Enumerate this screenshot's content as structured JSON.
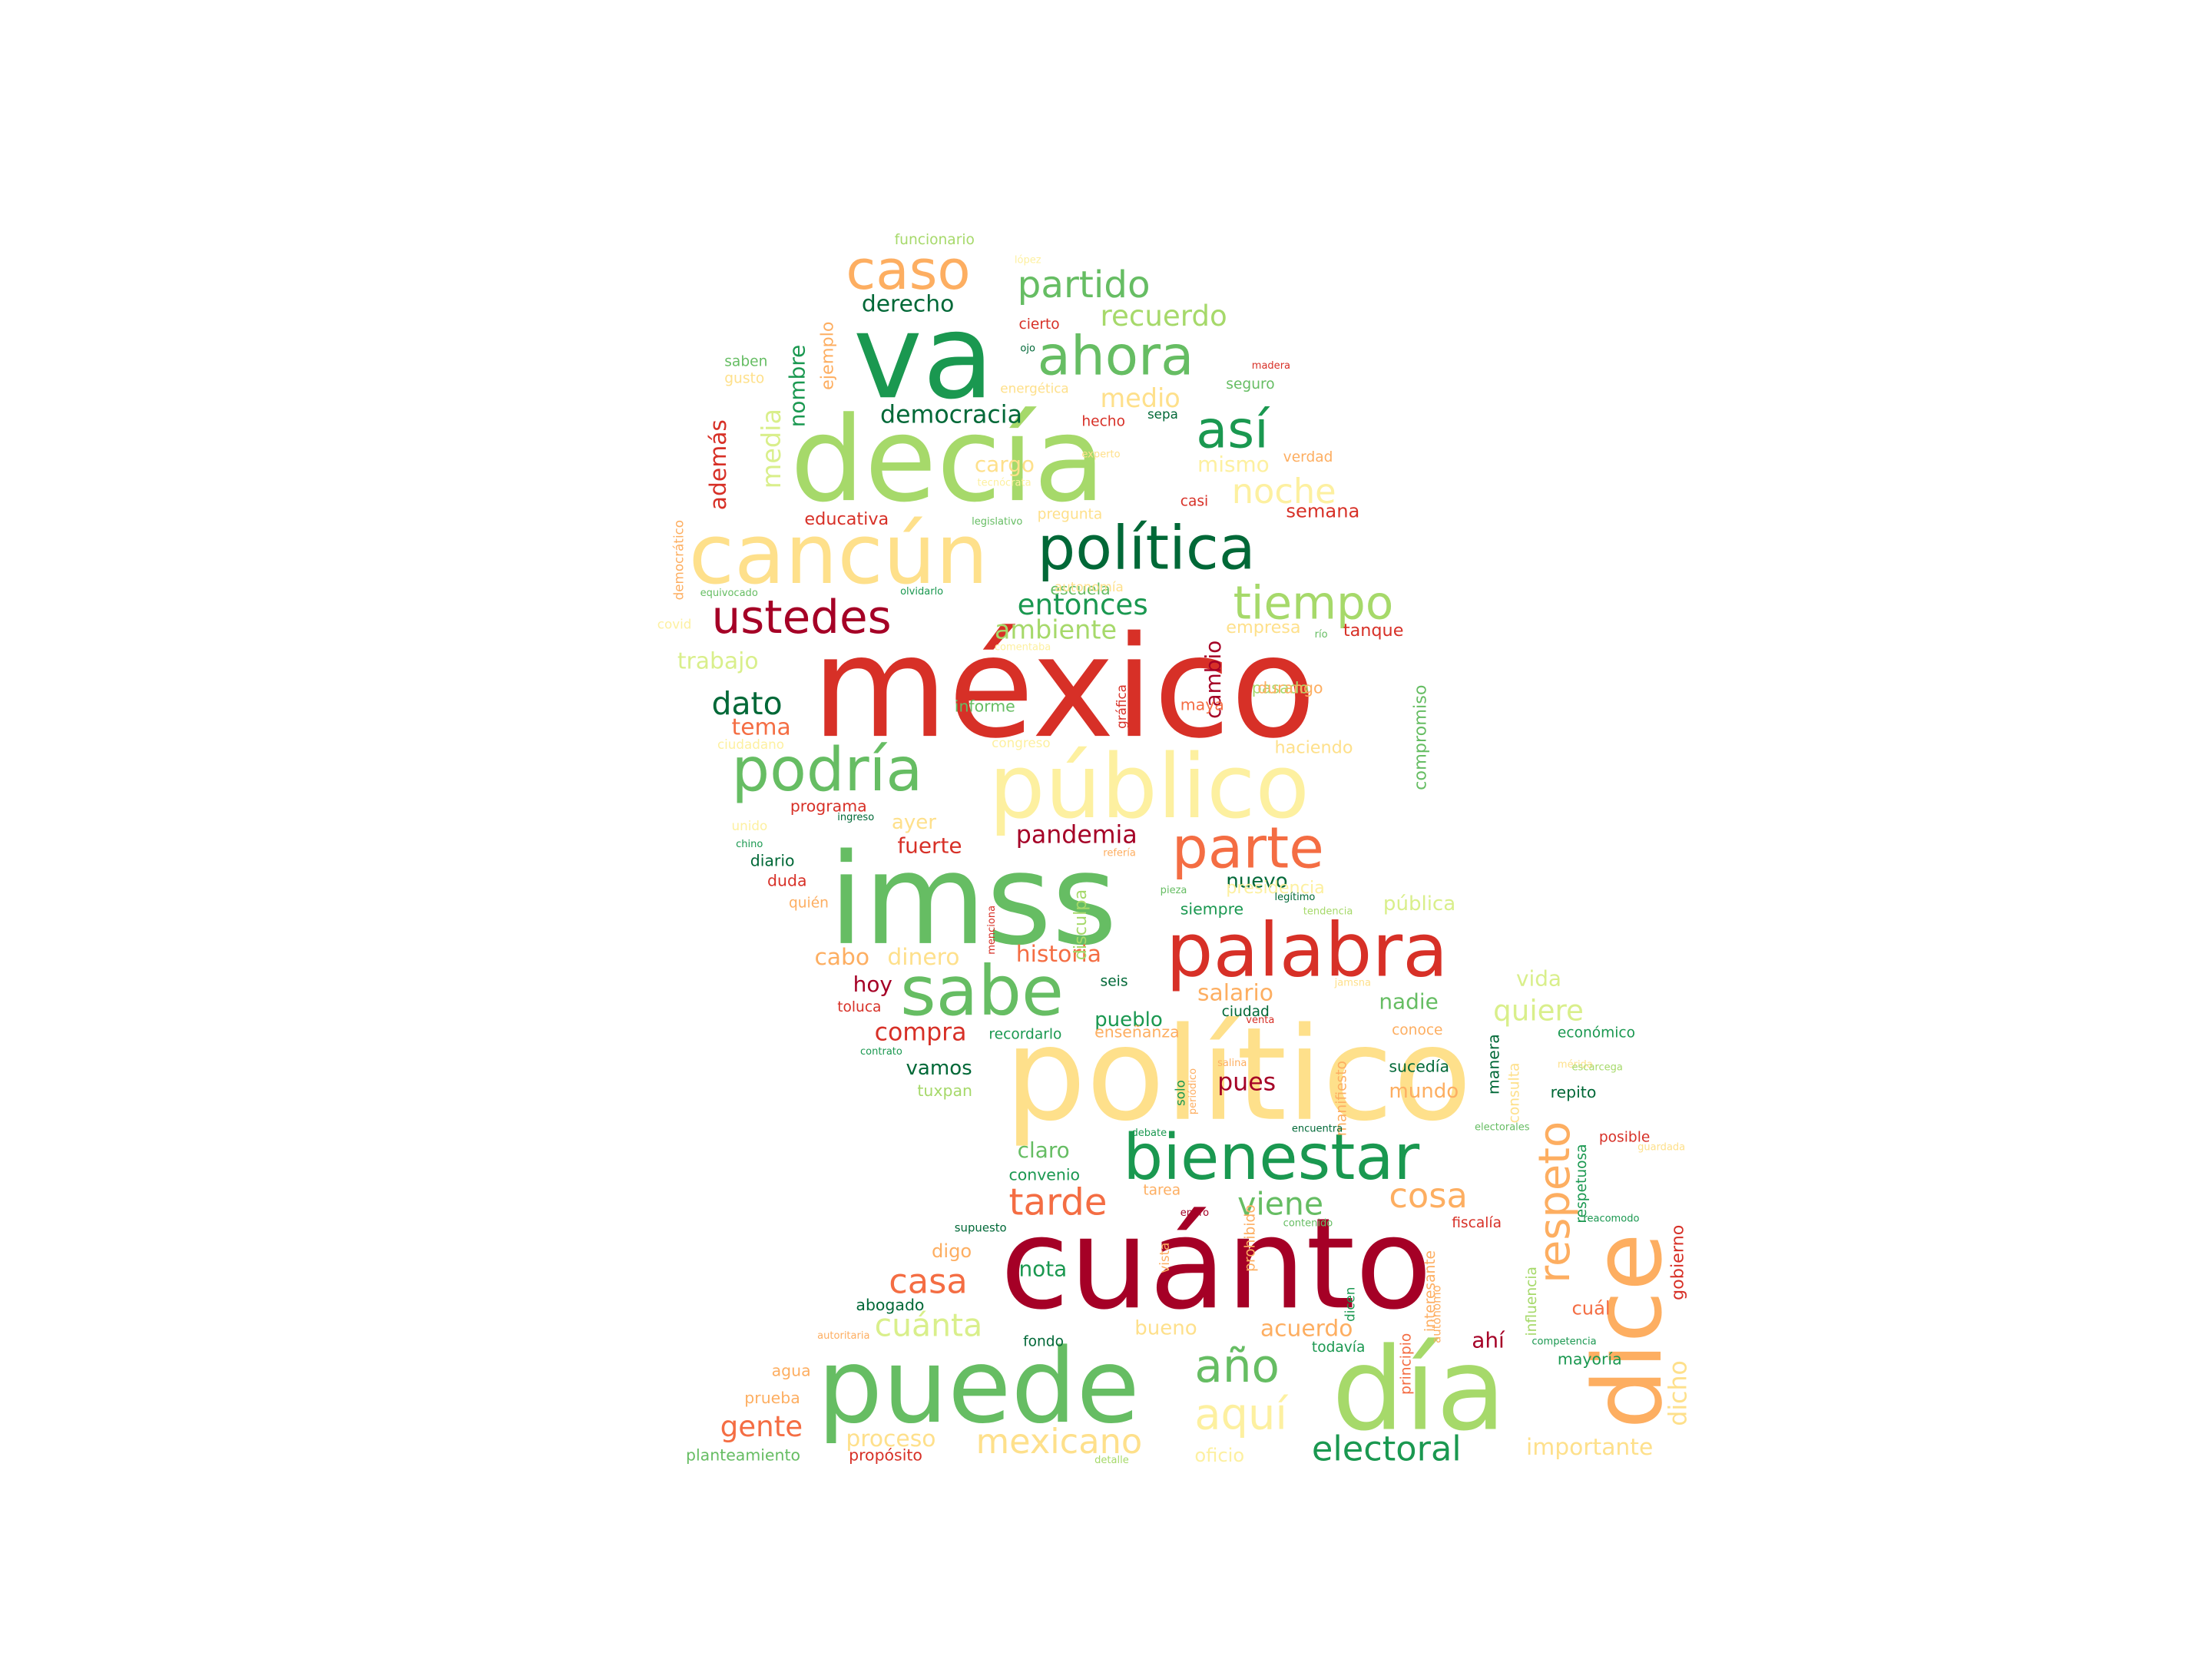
{
  "palette": {
    "dark_red": "#a50026",
    "red": "#d73027",
    "orange_red": "#f46d43",
    "orange": "#fdae61",
    "light_orange": "#fee08b",
    "pale_yellow": "#ffffbf",
    "pale_green": "#d9ef8b",
    "light_green": "#a6d96a",
    "green": "#66bd63",
    "dark_green": "#1a9850",
    "deep_green": "#006837",
    "yellow_text": "#fdf0a0"
  },
  "words": [
    {
      "text": "méxico",
      "color": "#d73027"
    },
    {
      "text": "político",
      "color": "#fee08b"
    },
    {
      "text": "cuánto",
      "color": "#a50026"
    },
    {
      "text": "imss",
      "color": "#66bd63"
    },
    {
      "text": "decía",
      "color": "#a6d96a"
    },
    {
      "text": "va",
      "color": "#1a9850"
    },
    {
      "text": "puede",
      "color": "#66bd63"
    },
    {
      "text": "día",
      "color": "#a6d96a"
    },
    {
      "text": "dice",
      "color": "#fdae61"
    },
    {
      "text": "público",
      "color": "#fdf0a0"
    },
    {
      "text": "cancún",
      "color": "#fee08b"
    },
    {
      "text": "palabra",
      "color": "#d73027"
    },
    {
      "text": "sabe",
      "color": "#66bd63"
    },
    {
      "text": "política",
      "color": "#006837"
    },
    {
      "text": "bienestar",
      "color": "#1a9850"
    },
    {
      "text": "podría",
      "color": "#66bd63"
    },
    {
      "text": "ahora",
      "color": "#66bd63"
    },
    {
      "text": "caso",
      "color": "#fdae61"
    },
    {
      "text": "parte",
      "color": "#f46d43"
    },
    {
      "text": "así",
      "color": "#1a9850"
    },
    {
      "text": "ustedes",
      "color": "#a50026"
    },
    {
      "text": "tiempo",
      "color": "#a6d96a"
    },
    {
      "text": "partido",
      "color": "#66bd63"
    },
    {
      "text": "noche",
      "color": "#fdf0a0"
    },
    {
      "text": "año",
      "color": "#66bd63"
    },
    {
      "text": "aquí",
      "color": "#fdf0a0"
    },
    {
      "text": "mexicano",
      "color": "#fee08b"
    },
    {
      "text": "electoral",
      "color": "#1a9850"
    },
    {
      "text": "tarde",
      "color": "#f46d43"
    },
    {
      "text": "casa",
      "color": "#f46d43"
    },
    {
      "text": "cuánta",
      "color": "#d9ef8b"
    },
    {
      "text": "cosa",
      "color": "#fdae61"
    },
    {
      "text": "viene",
      "color": "#66bd63"
    },
    {
      "text": "respeto",
      "color": "#fdae61"
    },
    {
      "text": "gente",
      "color": "#f46d43"
    },
    {
      "text": "dato",
      "color": "#006837"
    },
    {
      "text": "entonces",
      "color": "#1a9850"
    },
    {
      "text": "ambiente",
      "color": "#a6d96a"
    },
    {
      "text": "recuerdo",
      "color": "#a6d96a"
    },
    {
      "text": "democracia",
      "color": "#006837"
    },
    {
      "text": "derecho",
      "color": "#006837"
    },
    {
      "text": "medio",
      "color": "#fee08b"
    },
    {
      "text": "mismo",
      "color": "#fdf0a0"
    },
    {
      "text": "cargo",
      "color": "#fee08b"
    },
    {
      "text": "trabajo",
      "color": "#d9ef8b"
    },
    {
      "text": "tema",
      "color": "#f46d43"
    },
    {
      "text": "pandemia",
      "color": "#a50026"
    },
    {
      "text": "fuerte",
      "color": "#d73027"
    },
    {
      "text": "dinero",
      "color": "#fee08b"
    },
    {
      "text": "historia",
      "color": "#f46d43"
    },
    {
      "text": "cabo",
      "color": "#fdae61"
    },
    {
      "text": "hoy",
      "color": "#a50026"
    },
    {
      "text": "compra",
      "color": "#d73027"
    },
    {
      "text": "vamos",
      "color": "#006837"
    },
    {
      "text": "salario",
      "color": "#fdae61"
    },
    {
      "text": "pueblo",
      "color": "#1a9850"
    },
    {
      "text": "nadie",
      "color": "#66bd63"
    },
    {
      "text": "quiere",
      "color": "#d9ef8b"
    },
    {
      "text": "vida",
      "color": "#d9ef8b"
    },
    {
      "text": "pues",
      "color": "#a50026"
    },
    {
      "text": "mundo",
      "color": "#fdae61"
    },
    {
      "text": "claro",
      "color": "#66bd63"
    },
    {
      "text": "nota",
      "color": "#1a9850"
    },
    {
      "text": "digo",
      "color": "#fdae61"
    },
    {
      "text": "bueno",
      "color": "#fee08b"
    },
    {
      "text": "acuerdo",
      "color": "#fdae61"
    },
    {
      "text": "proceso",
      "color": "#fee08b"
    },
    {
      "text": "importante",
      "color": "#fee08b"
    },
    {
      "text": "oficio",
      "color": "#fdf0a0"
    },
    {
      "text": "cuál",
      "color": "#f46d43"
    },
    {
      "text": "ahí",
      "color": "#a50026"
    },
    {
      "text": "gobierno",
      "color": "#d73027"
    },
    {
      "text": "dicho",
      "color": "#fee08b"
    },
    {
      "text": "además",
      "color": "#d73027"
    },
    {
      "text": "media",
      "color": "#d9ef8b"
    },
    {
      "text": "nombre",
      "color": "#1a9850"
    },
    {
      "text": "ejemplo",
      "color": "#fdae61"
    },
    {
      "text": "cambio",
      "color": "#a50026"
    },
    {
      "text": "disculpa",
      "color": "#a6d96a"
    },
    {
      "text": "compromiso",
      "color": "#66bd63"
    },
    {
      "text": "semana",
      "color": "#d73027"
    },
    {
      "text": "educativa",
      "color": "#d73027"
    },
    {
      "text": "escuela",
      "color": "#66bd63"
    },
    {
      "text": "empresa",
      "color": "#fee08b"
    },
    {
      "text": "tanque",
      "color": "#d73027"
    },
    {
      "text": "informe",
      "color": "#66bd63"
    },
    {
      "text": "maya",
      "color": "#f46d43"
    },
    {
      "text": "pasado",
      "color": "#a6d96a"
    },
    {
      "text": "durango",
      "color": "#fdae61"
    },
    {
      "text": "haciendo",
      "color": "#fee08b"
    },
    {
      "text": "ayer",
      "color": "#fee08b"
    },
    {
      "text": "programa",
      "color": "#d73027"
    },
    {
      "text": "diario",
      "color": "#006837"
    },
    {
      "text": "duda",
      "color": "#d73027"
    },
    {
      "text": "quién",
      "color": "#fdae61"
    },
    {
      "text": "pública",
      "color": "#d9ef8b"
    },
    {
      "text": "nuevo",
      "color": "#006837"
    },
    {
      "text": "siempre",
      "color": "#1a9850"
    },
    {
      "text": "presidencia",
      "color": "#fdf0a0"
    },
    {
      "text": "seis",
      "color": "#006837"
    },
    {
      "text": "toluca",
      "color": "#d73027"
    },
    {
      "text": "ciudad",
      "color": "#006837"
    },
    {
      "text": "enseñanza",
      "color": "#fdae61"
    },
    {
      "text": "recordarlo",
      "color": "#1a9850"
    },
    {
      "text": "tuxpan",
      "color": "#a6d96a"
    },
    {
      "text": "convenio",
      "color": "#1a9850"
    },
    {
      "text": "abogado",
      "color": "#006837"
    },
    {
      "text": "fondo",
      "color": "#006837"
    },
    {
      "text": "todavía",
      "color": "#1a9850"
    },
    {
      "text": "agua",
      "color": "#fdae61"
    },
    {
      "text": "prueba",
      "color": "#fdae61"
    },
    {
      "text": "planteamiento",
      "color": "#66bd63"
    },
    {
      "text": "propósito",
      "color": "#d73027"
    },
    {
      "text": "sucedía",
      "color": "#006837"
    },
    {
      "text": "manera",
      "color": "#006837"
    },
    {
      "text": "repito",
      "color": "#006837"
    },
    {
      "text": "económico",
      "color": "#1a9850"
    },
    {
      "text": "conoce",
      "color": "#fdae61"
    },
    {
      "text": "fiscalía",
      "color": "#d73027"
    },
    {
      "text": "mayoría",
      "color": "#1a9850"
    },
    {
      "text": "posible",
      "color": "#d73027"
    },
    {
      "text": "funcionario",
      "color": "#a6d96a"
    },
    {
      "text": "saben",
      "color": "#66bd63"
    },
    {
      "text": "gusto",
      "color": "#fee08b"
    },
    {
      "text": "cierto",
      "color": "#d73027"
    },
    {
      "text": "hecho",
      "color": "#d73027"
    },
    {
      "text": "sepa",
      "color": "#006837"
    },
    {
      "text": "seguro",
      "color": "#66bd63"
    },
    {
      "text": "verdad",
      "color": "#fdae61"
    },
    {
      "text": "casi",
      "color": "#d73027"
    },
    {
      "text": "pregunta",
      "color": "#fee08b"
    },
    {
      "text": "energética",
      "color": "#fee08b"
    },
    {
      "text": "democrático",
      "color": "#fdae61"
    },
    {
      "text": "equivocado",
      "color": "#66bd63"
    },
    {
      "text": "covid",
      "color": "#fdf0a0"
    },
    {
      "text": "ciudadano",
      "color": "#fdf0a0"
    },
    {
      "text": "unido",
      "color": "#fdf0a0"
    },
    {
      "text": "gráfica",
      "color": "#d73027"
    },
    {
      "text": "congreso",
      "color": "#fdf0a0"
    },
    {
      "text": "influencia",
      "color": "#a6d96a"
    },
    {
      "text": "respetuosa",
      "color": "#1a9850"
    },
    {
      "text": "interesante",
      "color": "#fdae61"
    },
    {
      "text": "principio",
      "color": "#f46d43"
    },
    {
      "text": "prohibido",
      "color": "#fdae61"
    },
    {
      "text": "dicen",
      "color": "#1a9850"
    },
    {
      "text": "vista",
      "color": "#fdae61"
    },
    {
      "text": "solo",
      "color": "#1a9850"
    },
    {
      "text": "manifiesto",
      "color": "#fdae61"
    },
    {
      "text": "consulta",
      "color": "#fee08b"
    },
    {
      "text": "autónomo",
      "color": "#fdae61"
    },
    {
      "text": "tarea",
      "color": "#fdae61"
    },
    {
      "text": "lópez",
      "color": "#fdf0a0"
    },
    {
      "text": "ojo",
      "color": "#006837"
    },
    {
      "text": "madera",
      "color": "#d73027"
    },
    {
      "text": "experto",
      "color": "#fee08b"
    },
    {
      "text": "tecnócrata",
      "color": "#fdf0a0"
    },
    {
      "text": "legislativo",
      "color": "#66bd63"
    },
    {
      "text": "olvidarlo",
      "color": "#1a9850"
    },
    {
      "text": "autonomía",
      "color": "#fee08b"
    },
    {
      "text": "comentaba",
      "color": "#fdf0a0"
    },
    {
      "text": "río",
      "color": "#66bd63"
    },
    {
      "text": "ingreso",
      "color": "#006837"
    },
    {
      "text": "chino",
      "color": "#1a9850"
    },
    {
      "text": "refería",
      "color": "#fdae61"
    },
    {
      "text": "legítimo",
      "color": "#006837"
    },
    {
      "text": "pieza",
      "color": "#66bd63"
    },
    {
      "text": "tendencia",
      "color": "#a6d96a"
    },
    {
      "text": "menciona",
      "color": "#d73027"
    },
    {
      "text": "contrato",
      "color": "#1a9850"
    },
    {
      "text": "salina",
      "color": "#fdae61"
    },
    {
      "text": "periódico",
      "color": "#fdae61"
    },
    {
      "text": "venta",
      "color": "#d73027"
    },
    {
      "text": "debate",
      "color": "#1a9850"
    },
    {
      "text": "encuentra",
      "color": "#006837"
    },
    {
      "text": "electorales",
      "color": "#66bd63"
    },
    {
      "text": "contenido",
      "color": "#66bd63"
    },
    {
      "text": "reacomodo",
      "color": "#1a9850"
    },
    {
      "text": "competencia",
      "color": "#1a9850"
    },
    {
      "text": "supuesto",
      "color": "#006837"
    },
    {
      "text": "enero",
      "color": "#a50026"
    },
    {
      "text": "mérida",
      "color": "#fee08b"
    },
    {
      "text": "escarcega",
      "color": "#a6d96a"
    },
    {
      "text": "guardada",
      "color": "#fee08b"
    },
    {
      "text": "detalle",
      "color": "#a6d96a"
    },
    {
      "text": "autoritaria",
      "color": "#fdae61"
    },
    {
      "text": "jamsna",
      "color": "#fee08b"
    },
    {
      "text": "cuenta",
      "color": "#fdf0a0"
    }
  ]
}
